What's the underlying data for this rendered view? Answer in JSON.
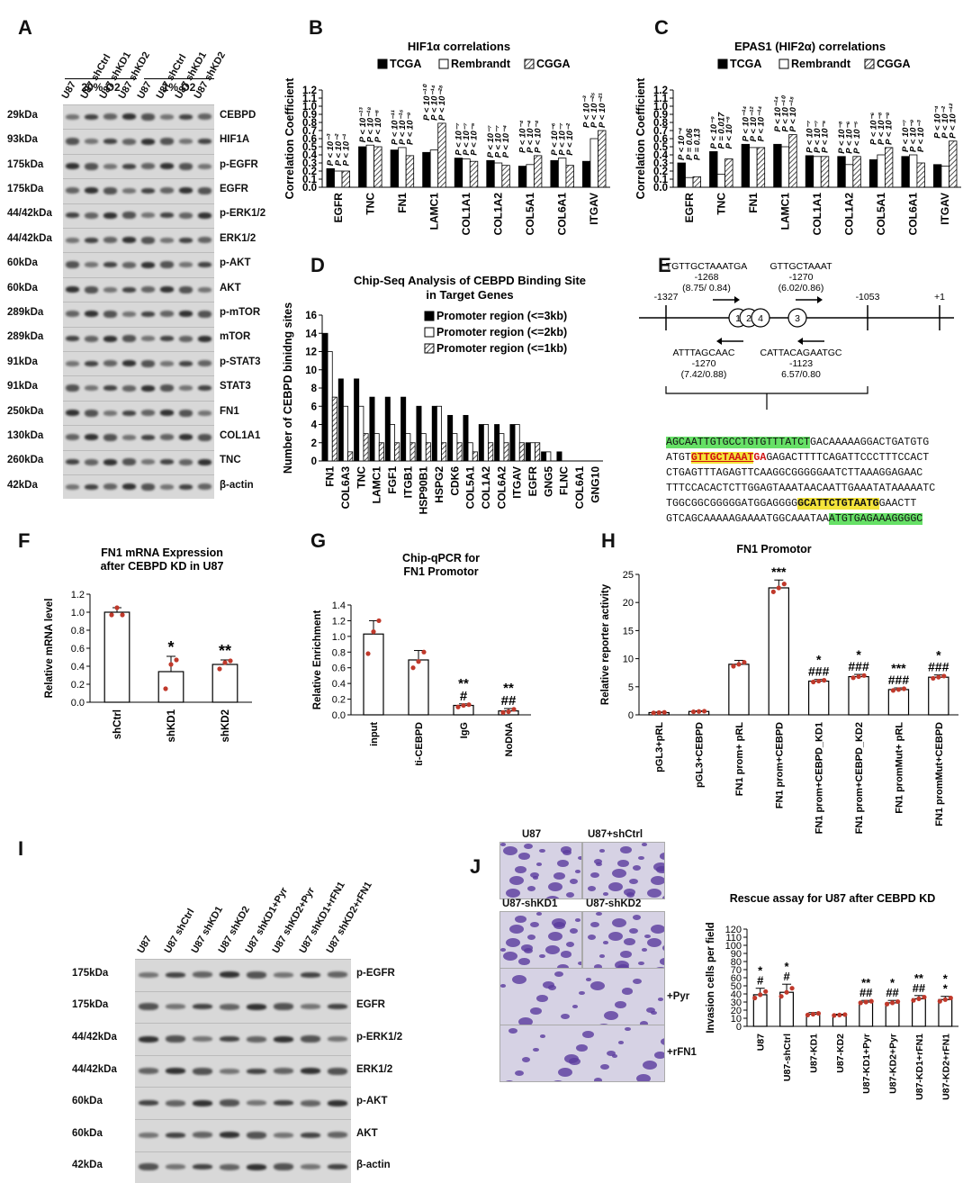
{
  "panels": {
    "A": {
      "label": "A",
      "lanes": [
        "U87",
        "U87 shCtrl",
        "U87 shKD1",
        "U87 shKD2",
        "U87",
        "U87 shCtrl",
        "U87 shKD1",
        "U87 shKD2"
      ],
      "groups": [
        "20% O2",
        "1% O2"
      ],
      "rows": [
        {
          "kda": "29kDa",
          "name": "CEBPD"
        },
        {
          "kda": "93kDa",
          "name": "HIF1A"
        },
        {
          "kda": "175kDa",
          "name": "p-EGFR"
        },
        {
          "kda": "175kDa",
          "name": "EGFR"
        },
        {
          "kda": "44/42kDa",
          "name": "p-ERK1/2"
        },
        {
          "kda": "44/42kDa",
          "name": "ERK1/2"
        },
        {
          "kda": "60kDa",
          "name": "p-AKT"
        },
        {
          "kda": "60kDa",
          "name": "AKT"
        },
        {
          "kda": "289kDa",
          "name": "p-mTOR"
        },
        {
          "kda": "289kDa",
          "name": "mTOR"
        },
        {
          "kda": "91kDa",
          "name": "p-STAT3"
        },
        {
          "kda": "91kDa",
          "name": "STAT3"
        },
        {
          "kda": "250kDa",
          "name": "FN1"
        },
        {
          "kda": "130kDa",
          "name": "COL1A1"
        },
        {
          "kda": "260kDa",
          "name": "TNC"
        },
        {
          "kda": "42kDa",
          "name": "β-actin"
        }
      ]
    },
    "B": {
      "label": "B"
    },
    "C": {
      "label": "C"
    },
    "D": {
      "label": "D"
    },
    "E": {
      "label": "E",
      "pos_left": "-1327",
      "pos_mid": "-1053",
      "pos_right": "+1",
      "site1_seq": "TGTTGCTAAATGA",
      "site1_pos": "-1268",
      "site1_score": "(8.75/ 0.84)",
      "site2_seq": "GTTGCTAAAT",
      "site2_pos": "-1270",
      "site2_score": "(6.02/0.86)",
      "site3_seq": "ATTTAGCAAC",
      "site3_pos": "-1270",
      "site3_score": "(7.42/0.88)",
      "site4_seq": "CATTACAGAATGC",
      "site4_pos": "-1123",
      "site4_score": "6.57/0.80",
      "circles": [
        "1",
        "2",
        "4",
        "3"
      ],
      "seq": {
        "l1_hl": "AGCAATTGTGCCTGTGTTTATCT",
        "l1_rest": "GACAAAAAGGACTGATGTG",
        "l2_a": "ATGT",
        "l2_red": "GTTGCTAAAT",
        "l2_g": "GA",
        "l2_rest": "GAGACTTTTCAGATTCCCTTTCCACT",
        "l3": "CTGAGTTTAGAGTTCAAGGCGGGGGAATCTTAAAGGAGAAC",
        "l4": "TTTCCACACTCTTGGAGTAAATAACAATTGAAATATAAAAATC",
        "l5_a": "TGGCGGCGGGGGATGGAGGGG",
        "l5_yellow": "GCATTCTGTAATG",
        "l5_rest": "GAACTT",
        "l6_a": "GTCAGCAAAAAGAAAATGGCAAATAA",
        "l6_hl": "ATGTGAGAAAGGGGC"
      }
    },
    "F": {
      "label": "F"
    },
    "G": {
      "label": "G"
    },
    "H": {
      "label": "H"
    },
    "I": {
      "label": "I",
      "lanes": [
        "U87",
        "U87 shCtrl",
        "U87 shKD1",
        "U87 shKD2",
        "U87 shKD1+Pyr",
        "U87 shKD2+Pyr",
        "U87 shKD1+rFN1",
        "U87 shKD2+rFN1"
      ],
      "rows": [
        {
          "kda": "175kDa",
          "name": "p-EGFR"
        },
        {
          "kda": "175kDa",
          "name": "EGFR"
        },
        {
          "kda": "44/42kDa",
          "name": "p-ERK1/2"
        },
        {
          "kda": "44/42kDa",
          "name": "ERK1/2"
        },
        {
          "kda": "60kDa",
          "name": "p-AKT"
        },
        {
          "kda": "60kDa",
          "name": "AKT"
        },
        {
          "kda": "42kDa",
          "name": "β-actin"
        }
      ]
    },
    "J": {
      "label": "J",
      "photo_labels": [
        "U87",
        "U87+shCtrl",
        "U87-shKD1",
        "U87-shKD2"
      ],
      "side_labels": [
        "+Pyr",
        "+rFN1"
      ]
    }
  },
  "chart_data": [
    {
      "id": "B",
      "type": "bar",
      "title": "HIF1α correlations",
      "ylabel": "Correlation Coefficient",
      "ylim": [
        0,
        1.2
      ],
      "categories": [
        "EGFR",
        "TNC",
        "FN1",
        "LAMC1",
        "COL1A1",
        "COL1A2",
        "COL5A1",
        "COL6A1",
        "ITGAV"
      ],
      "series": [
        {
          "name": "TCGA",
          "values": [
            0.23,
            0.5,
            0.46,
            0.43,
            0.36,
            0.33,
            0.26,
            0.33,
            0.32
          ]
        },
        {
          "name": "Rembrandt",
          "values": [
            0.2,
            0.52,
            0.49,
            0.46,
            0.35,
            0.3,
            0.28,
            0.36,
            0.6
          ]
        },
        {
          "name": "CGGA",
          "values": [
            0.2,
            0.5,
            0.39,
            0.79,
            0.32,
            0.27,
            0.39,
            0.27,
            0.7
          ]
        }
      ],
      "annotations": [
        [
          "P < 10⁻³",
          "P < 10⁻²",
          "P < 10⁻¹"
        ],
        [
          "P < 10⁻¹³",
          "P < 10⁻¹⁸",
          "P < 10⁻⁸"
        ],
        [
          "P < 10⁻¹¹",
          "P < 10⁻¹⁵",
          "P < 10⁻⁹"
        ],
        [
          "P < 10⁻¹⁰",
          "P < 10⁻¹⁴",
          "P < 10⁻²⁸"
        ],
        [
          "P < 10⁻⁷",
          "P < 10⁻⁷",
          "P < 10⁻⁵"
        ],
        [
          "P < 10⁻⁷",
          "P < 10⁻⁷",
          "P < 10⁻⁴"
        ],
        [
          "P < 10⁻⁴",
          "P < 10⁻⁴",
          "P < 10⁻⁴"
        ],
        [
          "P < 10⁻⁶",
          "P < 10⁻⁷",
          "P < 10⁻²"
        ],
        [
          "P < 10⁻³",
          "P < 10⁻²⁵",
          "P < 10⁻²¹"
        ]
      ]
    },
    {
      "id": "C",
      "type": "bar",
      "title": "EPAS1 (HIF2α) correlations",
      "ylabel": "Correlation Coefficient",
      "ylim": [
        0,
        1.2
      ],
      "categories": [
        "EGFR",
        "TNC",
        "FN1",
        "LAMC1",
        "COL1A1",
        "COL1A2",
        "COL5A1",
        "COL6A1",
        "ITGAV"
      ],
      "series": [
        {
          "name": "TCGA",
          "values": [
            0.3,
            0.44,
            0.53,
            0.53,
            0.39,
            0.38,
            0.34,
            0.38,
            0.28
          ]
        },
        {
          "name": "Rembrandt",
          "values": [
            0.12,
            0.16,
            0.49,
            0.5,
            0.38,
            0.28,
            0.4,
            0.4,
            0.26
          ]
        },
        {
          "name": "CGGA",
          "values": [
            0.13,
            0.35,
            0.49,
            0.65,
            0.38,
            0.38,
            0.49,
            0.3,
            0.57
          ]
        }
      ],
      "annotations": [
        [
          "P < 10⁻⁴",
          "P = 0.06",
          "P = 0.13"
        ],
        [
          "P < 10⁻⁹",
          "P = 0.017",
          "P < 10⁻⁸"
        ],
        [
          "P < 10⁻¹⁴",
          "P < 10⁻¹²",
          "P < 10⁻¹⁴"
        ],
        [
          "P < 10⁻¹⁴",
          "P < 10⁻¹⁰",
          "P < 10⁻¹⁸"
        ],
        [
          "P < 10⁻⁷",
          "P < 10⁻⁷",
          "P < 10⁻⁵"
        ],
        [
          "P < 10⁻⁸",
          "P < 10⁻⁶",
          "P < 10⁻⁵"
        ],
        [
          "P < 10⁻⁶",
          "P < 10⁻⁸",
          "P < 10⁻⁸"
        ],
        [
          "P < 10⁻⁷",
          "P < 10⁻⁹",
          "P < 10⁻³"
        ],
        [
          "P < 10⁻⁴",
          "P < 10⁻²",
          "P < 10⁻¹²"
        ]
      ]
    },
    {
      "id": "D",
      "type": "bar",
      "title": "Chip-Seq Analysis of CEBPD Binding Site\nin Target Genes",
      "ylabel": "Number of CEBPD binidng sites",
      "ylim": [
        0,
        16
      ],
      "categories": [
        "FN1",
        "COL6A3",
        "TNC",
        "LAMC1",
        "FGF1",
        "ITGB1",
        "HSP90B1",
        "HSPG2",
        "CDK6",
        "COL5A1",
        "COL1A2",
        "COL6A2",
        "ITGAV",
        "EGFR",
        "GNG5",
        "FLNC",
        "COL6A1",
        "GNG10"
      ],
      "series": [
        {
          "name": "Promoter region (<=3kb)",
          "values": [
            14,
            9,
            9,
            7,
            7,
            7,
            6,
            6,
            5,
            5,
            4,
            4,
            4,
            2,
            1,
            1,
            0,
            0
          ]
        },
        {
          "name": "Promoter region (<=2kb)",
          "values": [
            12,
            6,
            6,
            3,
            4,
            3,
            3,
            6,
            3,
            2,
            4,
            3,
            4,
            2,
            1,
            0,
            0,
            0
          ]
        },
        {
          "name": "Promoter region (<=1kb)",
          "values": [
            7,
            1,
            3,
            2,
            2,
            2,
            2,
            2,
            2,
            1,
            2,
            2,
            2,
            2,
            0,
            0,
            0,
            0
          ]
        }
      ]
    },
    {
      "id": "F",
      "type": "bar",
      "title": "FN1 mRNA Expression\nafter CEBPD KD in U87",
      "ylabel": "Relative mRNA level",
      "ylim": [
        0,
        1.2
      ],
      "categories": [
        "shCtrl",
        "shKD1",
        "shKD2"
      ],
      "values": [
        1.0,
        0.34,
        0.42
      ],
      "errors": [
        0.05,
        0.17,
        0.05
      ],
      "sig": [
        "",
        "*",
        "**"
      ],
      "points": [
        [
          0.97,
          1.05,
          0.97
        ],
        [
          0.15,
          0.42,
          0.47
        ],
        [
          0.37,
          0.44,
          0.46
        ]
      ]
    },
    {
      "id": "G",
      "type": "bar",
      "title": "Chip-qPCR for\nFN1 Promotor",
      "ylabel": "Relative Enrichment",
      "ylim": [
        0,
        1.4
      ],
      "categories": [
        "input",
        "anti-CEBPD",
        "IgG",
        "NoDNA"
      ],
      "values": [
        1.03,
        0.7,
        0.12,
        0.05
      ],
      "errors": [
        0.17,
        0.12,
        0.02,
        0.03
      ],
      "sig": [
        "",
        "",
        "**\n#",
        "**\n##"
      ],
      "points": [
        [
          0.78,
          1.06,
          1.2
        ],
        [
          0.6,
          0.68,
          0.8
        ],
        [
          0.1,
          0.12,
          0.13
        ],
        [
          0.03,
          0.04,
          0.07
        ]
      ]
    },
    {
      "id": "H",
      "type": "bar",
      "title": "FN1 Promotor",
      "ylabel": "Relative reporter activity",
      "ylim": [
        0,
        25
      ],
      "categories": [
        "pGL3+pRL",
        "pGL3+CEBPD",
        "FN1 prom+ pRL",
        "FN1 prom+CEBPD",
        "FN1 prom+CEBPD_KD1",
        "FN1 prom+CEBPD_KD2",
        "FN1 promMut+ pRL",
        "FN1 promMut+CEBPD"
      ],
      "values": [
        0.4,
        0.6,
        9.0,
        22.6,
        6.0,
        6.8,
        4.5,
        6.7
      ],
      "errors": [
        0.1,
        0.1,
        0.7,
        1.4,
        0.3,
        0.4,
        0.3,
        0.4
      ],
      "sig": [
        "",
        "",
        "",
        "***",
        "*\n###",
        "*\n###",
        "***\n###",
        "*\n###"
      ]
    },
    {
      "id": "J",
      "type": "bar",
      "title": "Rescue assay for U87 after CEBPD KD",
      "ylabel": "Invasion cells per field",
      "ylim": [
        0,
        120
      ],
      "categories": [
        "U87",
        "U87-shCtrl",
        "U87-KD1",
        "U87-KD2",
        "U87-KD1+Pyr",
        "U87-KD2+Pyr",
        "U87-KD1+rFN1",
        "U87-KD2+rFN1"
      ],
      "values": [
        39,
        42,
        15,
        14,
        30,
        29,
        34,
        33
      ],
      "errors": [
        8,
        10,
        2,
        1,
        2,
        3,
        4,
        4
      ],
      "sig": [
        "*\n#",
        "*\n#",
        "",
        "",
        "**\n##",
        "*\n##",
        "**\n##",
        "*\n*"
      ]
    }
  ]
}
